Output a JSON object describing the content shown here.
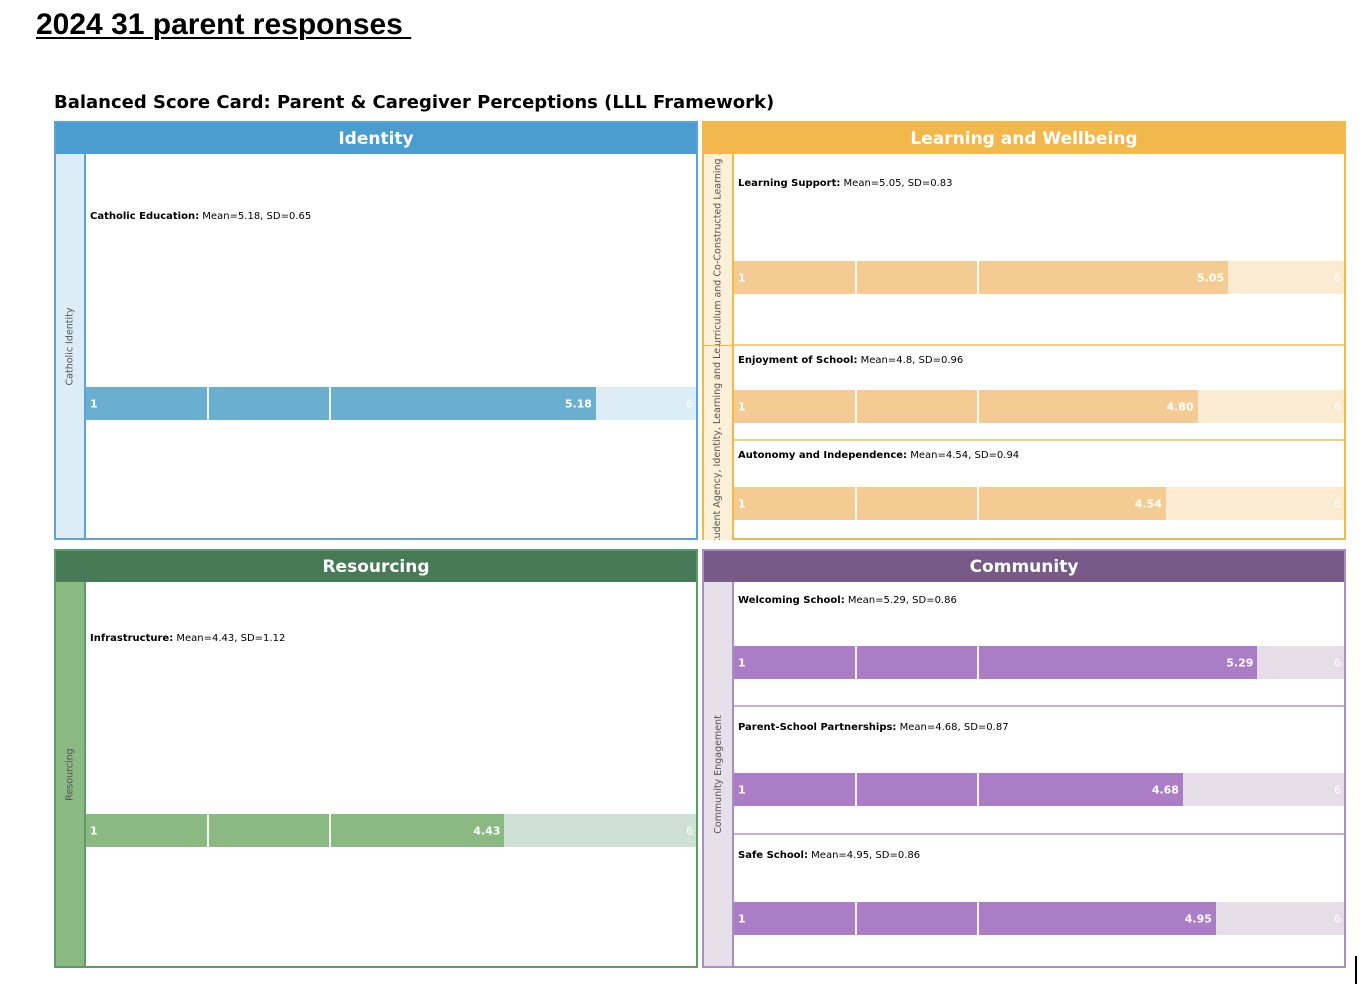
{
  "page": {
    "heading": "2024 31 parent responses ",
    "card_title": "Balanced Score Card: Parent & Caregiver Perceptions (LLL Framework)"
  },
  "chart_data": {
    "type": "bar",
    "scale": {
      "min": 1,
      "max": 6,
      "min_label": "1",
      "max_label": "6"
    },
    "panels": [
      {
        "title": "Identity",
        "colors": {
          "border": "#5ba3d9",
          "header": "#4b9ccf",
          "strip": "#dcedf7",
          "fill": "#6aafd0",
          "track": "#ddedf5"
        },
        "groups": [
          {
            "label": "Catholic Identity",
            "items": [
              {
                "name": "Catholic Education",
                "stats": "Mean=5.18, SD=0.65",
                "value": 5.18,
                "value_label": "5.18"
              }
            ]
          }
        ]
      },
      {
        "title": "Learning and Wellbeing",
        "colors": {
          "border": "#f2b84b",
          "header": "#f2b84b",
          "strip": "#fdf0d8",
          "fill": "#f4cb93",
          "track": "#fbebd2"
        },
        "groups": [
          {
            "label": "Curriculum and Co-Constructed Learning ...",
            "items": [
              {
                "name": "Learning Support",
                "stats": "Mean=5.05, SD=0.83",
                "value": 5.05,
                "value_label": "5.05"
              }
            ]
          },
          {
            "label": "Student Agency, Identity, Learning and Le...",
            "items": [
              {
                "name": "Enjoyment of School",
                "stats": "Mean=4.8, SD=0.96",
                "value": 4.8,
                "value_label": "4.80"
              },
              {
                "name": "Autonomy and Independence",
                "stats": "Mean=4.54, SD=0.94",
                "value": 4.54,
                "value_label": "4.54"
              }
            ]
          }
        ]
      },
      {
        "title": "Resourcing",
        "colors": {
          "border": "#5f9a6a",
          "header": "#477a57",
          "strip": "#8ab982",
          "fill": "#8ab982",
          "track": "#cfe0d5"
        },
        "groups": [
          {
            "label": "Resourcing",
            "items": [
              {
                "name": "Infrastructure",
                "stats": "Mean=4.43, SD=1.12",
                "value": 4.43,
                "value_label": "4.43"
              }
            ]
          }
        ]
      },
      {
        "title": "Community",
        "colors": {
          "border": "#a98fc0",
          "header": "#775a88",
          "strip": "#e6e0ea",
          "fill": "#ab7dc6",
          "track": "#e6dde9"
        },
        "groups": [
          {
            "label": "Community Engagement",
            "items": [
              {
                "name": "Welcoming School",
                "stats": "Mean=5.29, SD=0.86",
                "value": 5.29,
                "value_label": "5.29"
              },
              {
                "name": "Parent-School Partnerships",
                "stats": "Mean=4.68, SD=0.87",
                "value": 4.68,
                "value_label": "4.68"
              },
              {
                "name": "Safe School",
                "stats": "Mean=4.95, SD=0.86",
                "value": 4.95,
                "value_label": "4.95"
              }
            ]
          }
        ]
      }
    ]
  }
}
